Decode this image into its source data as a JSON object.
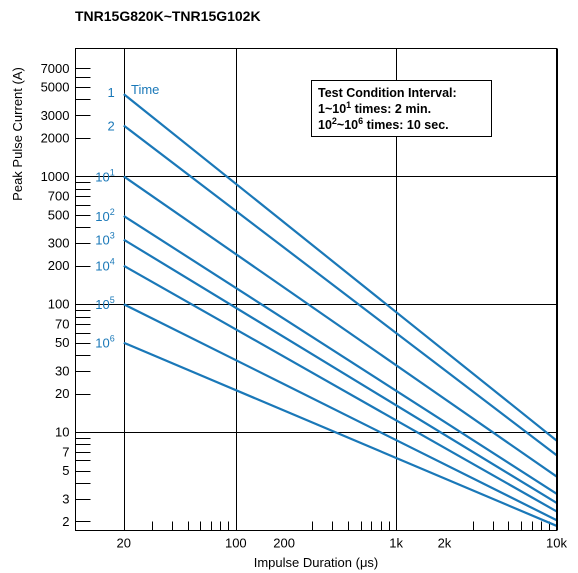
{
  "chart_data": {
    "type": "line",
    "title": "TNR15G820K~TNR15G102K",
    "xlabel": "Impulse Duration (μs)",
    "ylabel": "Peak Pulse Current (A)",
    "x_scale": "log",
    "y_scale": "log",
    "xlim": [
      10,
      10000
    ],
    "ylim": [
      1.7,
      10000
    ],
    "grid": true,
    "x_ticks": [
      {
        "value": 20,
        "label": "20"
      },
      {
        "value": 100,
        "label": "100"
      },
      {
        "value": 200,
        "label": "200"
      },
      {
        "value": 1000,
        "label": "1k"
      },
      {
        "value": 2000,
        "label": "2k"
      },
      {
        "value": 10000,
        "label": "10k"
      }
    ],
    "y_ticks": [
      {
        "value": 2,
        "label": "2"
      },
      {
        "value": 3,
        "label": "3"
      },
      {
        "value": 5,
        "label": "5"
      },
      {
        "value": 7,
        "label": "7"
      },
      {
        "value": 10,
        "label": "10"
      },
      {
        "value": 20,
        "label": "20"
      },
      {
        "value": 30,
        "label": "30"
      },
      {
        "value": 50,
        "label": "50"
      },
      {
        "value": 70,
        "label": "70"
      },
      {
        "value": 100,
        "label": "100"
      },
      {
        "value": 200,
        "label": "200"
      },
      {
        "value": 300,
        "label": "300"
      },
      {
        "value": 500,
        "label": "500"
      },
      {
        "value": 700,
        "label": "700"
      },
      {
        "value": 1000,
        "label": "1000"
      },
      {
        "value": 2000,
        "label": "2000"
      },
      {
        "value": 3000,
        "label": "3000"
      },
      {
        "value": 5000,
        "label": "5000"
      },
      {
        "value": 7000,
        "label": "7000"
      }
    ],
    "x_grid_major": [
      20,
      100,
      1000,
      10000
    ],
    "y_grid_major": [
      10,
      100,
      1000
    ],
    "x_minor_ticks": [
      30,
      40,
      50,
      60,
      70,
      80,
      90,
      300,
      400,
      500,
      600,
      700,
      800,
      900,
      3000,
      4000,
      5000,
      6000,
      7000,
      8000,
      9000
    ],
    "y_minor_ticks": [
      2,
      3,
      4,
      5,
      6,
      7,
      8,
      9,
      20,
      30,
      40,
      50,
      60,
      70,
      80,
      90,
      200,
      300,
      400,
      500,
      600,
      700,
      800,
      900,
      2000,
      3000,
      4000,
      5000,
      6000,
      7000
    ],
    "series_label_header": "Time",
    "series": [
      {
        "label_base": "1",
        "label_exp": "",
        "points": [
          [
            20,
            4400
          ],
          [
            10000,
            8.6
          ]
        ]
      },
      {
        "label_base": "2",
        "label_exp": "",
        "points": [
          [
            20,
            2500
          ],
          [
            10000,
            6.6
          ]
        ]
      },
      {
        "label_base": "10",
        "label_exp": "1",
        "points": [
          [
            20,
            1000
          ],
          [
            10000,
            4.5
          ]
        ]
      },
      {
        "label_base": "10",
        "label_exp": "2",
        "points": [
          [
            20,
            490
          ],
          [
            10000,
            3.3
          ]
        ]
      },
      {
        "label_base": "10",
        "label_exp": "3",
        "points": [
          [
            20,
            320
          ],
          [
            10000,
            2.8
          ]
        ]
      },
      {
        "label_base": "10",
        "label_exp": "4",
        "points": [
          [
            20,
            200
          ],
          [
            10000,
            2.4
          ]
        ]
      },
      {
        "label_base": "10",
        "label_exp": "5",
        "points": [
          [
            20,
            100
          ],
          [
            10000,
            2.05
          ]
        ]
      },
      {
        "label_base": "10",
        "label_exp": "6",
        "points": [
          [
            20,
            50
          ],
          [
            10000,
            1.85
          ]
        ]
      }
    ],
    "color": "#1a78b8",
    "annotation": {
      "title": "Test Condition Interval:",
      "line1": {
        "a": "1~10",
        "a_sup": "1",
        "b": " times: 2 min."
      },
      "line2": {
        "a": "10",
        "a_sup": "2",
        "b": "~10",
        "b_sup": "6",
        "c": " times: 10 sec."
      }
    }
  }
}
